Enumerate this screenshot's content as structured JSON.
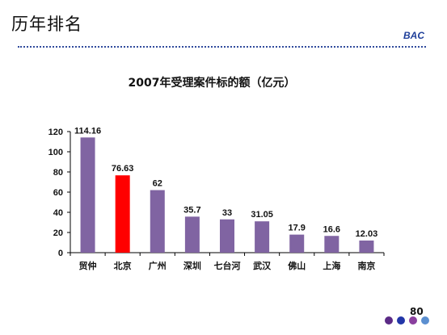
{
  "slide": {
    "title": "历年排名",
    "brand": "BAC",
    "page_number": "80",
    "nav_dot_colors": [
      "#5b2a86",
      "#2236a8",
      "#8a3f9e",
      "#5b8fd0"
    ]
  },
  "chart_data": {
    "type": "bar",
    "title": "2007年受理案件标的额（亿元）",
    "xlabel": "",
    "ylabel": "",
    "categories": [
      "贸仲",
      "北京",
      "广州",
      "深圳",
      "七台河",
      "武汉",
      "佛山",
      "上海",
      "南京"
    ],
    "values": [
      114.16,
      76.63,
      62,
      35.7,
      33,
      31.05,
      17.9,
      16.6,
      12.03
    ],
    "data_labels": [
      "114.16",
      "76.63",
      "62",
      "35.7",
      "33",
      "31.05",
      "17.9",
      "16.6",
      "12.03"
    ],
    "ylim": [
      0,
      120
    ],
    "yticks": [
      "0",
      "20",
      "40",
      "60",
      "80",
      "100",
      "120"
    ],
    "grid": false,
    "legend": "none",
    "colors": {
      "default_bar": "#8064a2",
      "highlight_bar": "#ff0000",
      "highlight_category": "北京",
      "axis": "#000000"
    }
  }
}
